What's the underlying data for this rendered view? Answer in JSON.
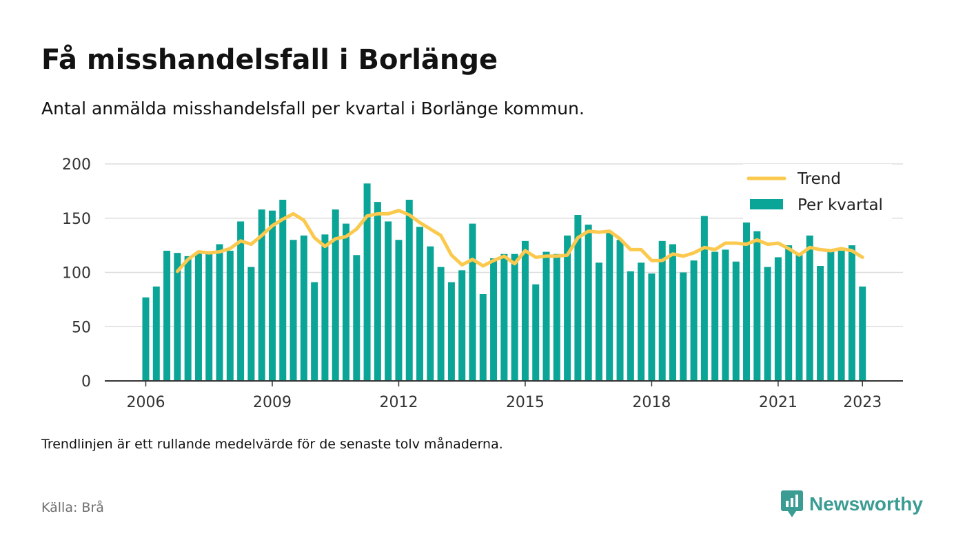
{
  "title": "Få misshandelsfall i Borlänge",
  "subtitle": "Antal anmälda misshandelsfall per kvartal i Borlänge kommun.",
  "note": "Trendlinjen är ett rullande medelvärde för de senaste tolv månaderna.",
  "source": "Källa: Brå",
  "brand": {
    "name": "Newsworthy",
    "icon": "newsworthy-logo-icon",
    "color": "#3a9c93"
  },
  "colors": {
    "bars": "#0aa596",
    "trend": "#fbc94e",
    "grid": "#dddddd",
    "axis": "#333333"
  },
  "chart_data": {
    "type": "bar",
    "x_start": "2006 Q1",
    "x_ticks": [
      "2006",
      "2009",
      "2012",
      "2015",
      "2018",
      "2021",
      "2023"
    ],
    "y_ticks": [
      0,
      50,
      100,
      150,
      200
    ],
    "ylim": [
      0,
      200
    ],
    "grid": true,
    "legend_position": "top-right",
    "series": [
      {
        "name": "Per kvartal",
        "type": "bar",
        "values": [
          77,
          87,
          120,
          118,
          115,
          118,
          117,
          126,
          120,
          147,
          105,
          158,
          157,
          167,
          130,
          134,
          91,
          135,
          158,
          145,
          116,
          182,
          165,
          147,
          130,
          167,
          142,
          124,
          105,
          91,
          102,
          145,
          80,
          113,
          117,
          117,
          129,
          89,
          119,
          117,
          134,
          153,
          144,
          109,
          138,
          130,
          101,
          109,
          99,
          129,
          126,
          100,
          111,
          152,
          119,
          121,
          110,
          146,
          138,
          105,
          114,
          125,
          116,
          134,
          106,
          119,
          120,
          125,
          87
        ]
      },
      {
        "name": "Trend",
        "type": "line",
        "start_index": 3,
        "values": [
          101,
          112,
          119,
          118,
          119,
          122,
          129,
          126,
          134,
          143,
          149,
          154,
          148,
          132,
          124,
          131,
          133,
          140,
          152,
          154,
          154,
          157,
          153,
          146,
          140,
          134,
          116,
          107,
          112,
          106,
          111,
          115,
          108,
          120,
          114,
          115,
          115,
          116,
          132,
          138,
          137,
          138,
          131,
          121,
          121,
          111,
          111,
          117,
          115,
          118,
          123,
          121,
          127,
          127,
          126,
          130,
          126,
          127,
          122,
          116,
          123,
          121,
          120,
          122,
          120,
          114
        ]
      }
    ]
  }
}
